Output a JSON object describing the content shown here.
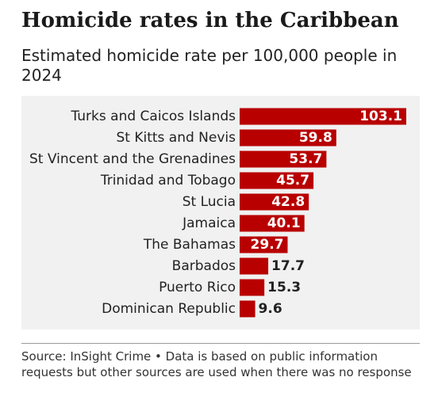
{
  "header": {
    "title": "Homicide rates in the Caribbean",
    "subtitle": "Estimated homicide rate per 100,000 people in 2024"
  },
  "footer": {
    "source": "Source: InSight Crime • Data is based on public information requests but other sources are used when there was no response"
  },
  "colors": {
    "bar": "#b80000",
    "panel": "#f1f1f1",
    "label_inside": "#ffffff",
    "label_outside": "#222222"
  },
  "chart_data": {
    "type": "bar",
    "orientation": "horizontal",
    "title": "Homicide rates in the Caribbean",
    "subtitle": "Estimated homicide rate per 100,000 people in 2024",
    "categories": [
      "Turks and Caicos Islands",
      "St Kitts and Nevis",
      "St Vincent and the Grenadines",
      "Trinidad and Tobago",
      "St Lucia",
      "Jamaica",
      "The Bahamas",
      "Barbados",
      "Puerto Rico",
      "Dominican Republic"
    ],
    "values": [
      103.1,
      59.8,
      53.7,
      45.7,
      42.8,
      40.1,
      29.7,
      17.7,
      15.3,
      9.6
    ],
    "xlim": [
      0,
      103.1
    ],
    "grid": false,
    "legend": "none",
    "data_labels": true
  }
}
